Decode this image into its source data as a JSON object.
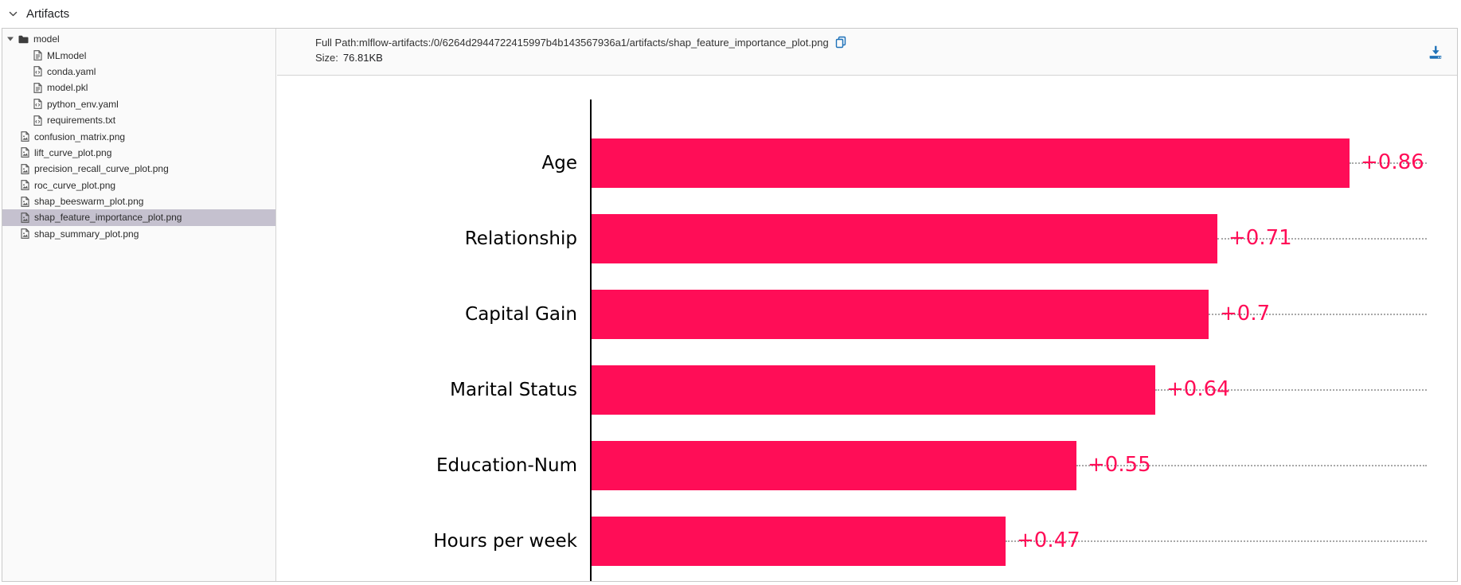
{
  "header": {
    "title": "Artifacts",
    "collapse_icon": "chevron-down-icon"
  },
  "file_tree": {
    "items": [
      {
        "label": "model",
        "type": "folder",
        "icon": "folder-icon",
        "level": 0,
        "expanded": true,
        "selected": false
      },
      {
        "label": "MLmodel",
        "type": "document",
        "icon": "document-icon",
        "level": 1,
        "selected": false
      },
      {
        "label": "conda.yaml",
        "type": "code",
        "icon": "code-file-icon",
        "level": 1,
        "selected": false
      },
      {
        "label": "model.pkl",
        "type": "document",
        "icon": "document-icon",
        "level": 1,
        "selected": false
      },
      {
        "label": "python_env.yaml",
        "type": "code",
        "icon": "code-file-icon",
        "level": 1,
        "selected": false
      },
      {
        "label": "requirements.txt",
        "type": "code",
        "icon": "code-file-icon",
        "level": 1,
        "selected": false
      },
      {
        "label": "confusion_matrix.png",
        "type": "image",
        "icon": "image-file-icon",
        "level": 0,
        "selected": false
      },
      {
        "label": "lift_curve_plot.png",
        "type": "image",
        "icon": "image-file-icon",
        "level": 0,
        "selected": false
      },
      {
        "label": "precision_recall_curve_plot.png",
        "type": "image",
        "icon": "image-file-icon",
        "level": 0,
        "selected": false
      },
      {
        "label": "roc_curve_plot.png",
        "type": "image",
        "icon": "image-file-icon",
        "level": 0,
        "selected": false
      },
      {
        "label": "shap_beeswarm_plot.png",
        "type": "image",
        "icon": "image-file-icon",
        "level": 0,
        "selected": false
      },
      {
        "label": "shap_feature_importance_plot.png",
        "type": "image",
        "icon": "image-file-icon",
        "level": 0,
        "selected": true
      },
      {
        "label": "shap_summary_plot.png",
        "type": "image",
        "icon": "image-file-icon",
        "level": 0,
        "selected": false
      }
    ]
  },
  "info_bar": {
    "full_path_label": "Full Path:",
    "full_path_value": "mlflow-artifacts:/0/6264d2944722415997b4b143567936a1/artifacts/shap_feature_importance_plot.png",
    "copy_icon": "copy-icon",
    "size_label": "Size:",
    "size_value": "76.81KB",
    "download_icon": "download-icon"
  },
  "chart_data": {
    "type": "bar",
    "orientation": "horizontal",
    "title": "",
    "categories": [
      "Age",
      "Relationship",
      "Capital Gain",
      "Marital Status",
      "Education-Num",
      "Hours per week"
    ],
    "values": [
      0.86,
      0.71,
      0.7,
      0.64,
      0.55,
      0.47
    ],
    "value_labels": [
      "+0.86",
      "+0.71",
      "+0.7",
      "+0.64",
      "+0.55",
      "+0.47"
    ],
    "xlim": [
      0,
      0.95
    ],
    "grid": "dotted-horizontal",
    "legend": "none",
    "bar_color": "#ff0d57",
    "value_label_color": "#ff0d57"
  },
  "colors": {
    "accent_crimson": "#ff0d57",
    "icon_blue": "#1f72b8",
    "selected_row_bg": "#c5c1cf",
    "panel_bg": "#fafafa",
    "border": "#c9c9c9"
  }
}
